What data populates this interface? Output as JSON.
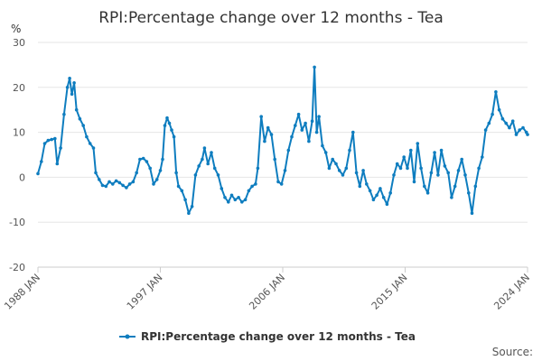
{
  "chart_data": {
    "type": "line",
    "title": "RPI:Percentage change over 12 months - Tea",
    "y_unit": "%",
    "ylim": [
      -20,
      30
    ],
    "y_ticks": [
      30,
      20,
      10,
      0,
      -10,
      -20
    ],
    "x_ticks": [
      "1988 JAN",
      "1997 JAN",
      "2006 JAN",
      "2015 JAN",
      "2024 JAN"
    ],
    "x_range": [
      "1988-01",
      "2024-01"
    ],
    "grid": true,
    "legend": "bottom-center",
    "series": [
      {
        "name": "RPI:Percentage change over 12 months - Tea",
        "color": "#0e7dbf",
        "points": [
          [
            "1988-01",
            0.8
          ],
          [
            "1988-04",
            3.5
          ],
          [
            "1988-07",
            7.5
          ],
          [
            "1988-10",
            8.2
          ],
          [
            "1989-01",
            8.4
          ],
          [
            "1989-04",
            8.6
          ],
          [
            "1989-06",
            3.0
          ],
          [
            "1989-09",
            6.5
          ],
          [
            "1989-12",
            14.0
          ],
          [
            "1990-03",
            20.0
          ],
          [
            "1990-05",
            22.0
          ],
          [
            "1990-07",
            18.5
          ],
          [
            "1990-09",
            21.0
          ],
          [
            "1990-11",
            15.0
          ],
          [
            "1991-02",
            13.0
          ],
          [
            "1991-05",
            11.5
          ],
          [
            "1991-08",
            9.0
          ],
          [
            "1991-11",
            7.5
          ],
          [
            "1992-02",
            6.5
          ],
          [
            "1992-04",
            1.0
          ],
          [
            "1992-07",
            -0.5
          ],
          [
            "1992-10",
            -1.8
          ],
          [
            "1993-01",
            -2.0
          ],
          [
            "1993-04",
            -1.0
          ],
          [
            "1993-07",
            -1.5
          ],
          [
            "1993-10",
            -0.8
          ],
          [
            "1994-01",
            -1.2
          ],
          [
            "1994-04",
            -1.8
          ],
          [
            "1994-07",
            -2.3
          ],
          [
            "1994-10",
            -1.5
          ],
          [
            "1995-01",
            -1.0
          ],
          [
            "1995-04",
            1.0
          ],
          [
            "1995-07",
            4.0
          ],
          [
            "1995-10",
            4.2
          ],
          [
            "1996-01",
            3.5
          ],
          [
            "1996-04",
            2.0
          ],
          [
            "1996-07",
            -1.5
          ],
          [
            "1996-10",
            -0.5
          ],
          [
            "1997-01",
            1.5
          ],
          [
            "1997-03",
            4.0
          ],
          [
            "1997-05",
            11.5
          ],
          [
            "1997-07",
            13.2
          ],
          [
            "1997-09",
            12.0
          ],
          [
            "1997-11",
            10.5
          ],
          [
            "1998-01",
            9.0
          ],
          [
            "1998-03",
            1.0
          ],
          [
            "1998-05",
            -2.0
          ],
          [
            "1998-08",
            -3.0
          ],
          [
            "1998-11",
            -5.0
          ],
          [
            "1999-02",
            -8.0
          ],
          [
            "1999-05",
            -6.5
          ],
          [
            "1999-08",
            0.5
          ],
          [
            "1999-11",
            2.5
          ],
          [
            "2000-02",
            4.0
          ],
          [
            "2000-04",
            6.5
          ],
          [
            "2000-07",
            3.0
          ],
          [
            "2000-10",
            5.5
          ],
          [
            "2001-01",
            2.0
          ],
          [
            "2001-04",
            0.5
          ],
          [
            "2001-07",
            -2.5
          ],
          [
            "2001-10",
            -4.5
          ],
          [
            "2002-01",
            -5.5
          ],
          [
            "2002-04",
            -4.0
          ],
          [
            "2002-07",
            -5.0
          ],
          [
            "2002-10",
            -4.5
          ],
          [
            "2003-01",
            -5.5
          ],
          [
            "2003-04",
            -5.0
          ],
          [
            "2003-07",
            -3.0
          ],
          [
            "2003-10",
            -2.0
          ],
          [
            "2004-01",
            -1.5
          ],
          [
            "2004-03",
            2.0
          ],
          [
            "2004-06",
            13.5
          ],
          [
            "2004-09",
            8.0
          ],
          [
            "2004-12",
            11.0
          ],
          [
            "2005-03",
            9.5
          ],
          [
            "2005-06",
            4.0
          ],
          [
            "2005-09",
            -1.0
          ],
          [
            "2005-12",
            -1.5
          ],
          [
            "2006-03",
            1.5
          ],
          [
            "2006-06",
            6.0
          ],
          [
            "2006-09",
            9.0
          ],
          [
            "2006-12",
            11.5
          ],
          [
            "2007-03",
            14.0
          ],
          [
            "2007-06",
            10.5
          ],
          [
            "2007-09",
            12.0
          ],
          [
            "2007-12",
            8.0
          ],
          [
            "2008-03",
            12.5
          ],
          [
            "2008-05",
            24.5
          ],
          [
            "2008-07",
            10.0
          ],
          [
            "2008-09",
            13.5
          ],
          [
            "2008-12",
            7.0
          ],
          [
            "2009-03",
            5.5
          ],
          [
            "2009-06",
            2.0
          ],
          [
            "2009-09",
            4.0
          ],
          [
            "2009-12",
            3.0
          ],
          [
            "2010-03",
            1.5
          ],
          [
            "2010-06",
            0.5
          ],
          [
            "2010-09",
            2.0
          ],
          [
            "2010-12",
            6.0
          ],
          [
            "2011-03",
            10.0
          ],
          [
            "2011-06",
            1.0
          ],
          [
            "2011-09",
            -2.0
          ],
          [
            "2011-12",
            1.5
          ],
          [
            "2012-03",
            -1.5
          ],
          [
            "2012-06",
            -3.0
          ],
          [
            "2012-09",
            -5.0
          ],
          [
            "2012-12",
            -4.0
          ],
          [
            "2013-03",
            -2.5
          ],
          [
            "2013-06",
            -4.5
          ],
          [
            "2013-09",
            -6.0
          ],
          [
            "2013-12",
            -3.5
          ],
          [
            "2014-03",
            0.5
          ],
          [
            "2014-06",
            3.0
          ],
          [
            "2014-09",
            2.0
          ],
          [
            "2014-12",
            4.5
          ],
          [
            "2015-03",
            2.0
          ],
          [
            "2015-06",
            6.0
          ],
          [
            "2015-09",
            -1.0
          ],
          [
            "2015-12",
            7.5
          ],
          [
            "2016-03",
            2.0
          ],
          [
            "2016-06",
            -2.0
          ],
          [
            "2016-09",
            -3.5
          ],
          [
            "2016-12",
            1.0
          ],
          [
            "2017-03",
            5.5
          ],
          [
            "2017-06",
            0.5
          ],
          [
            "2017-09",
            6.0
          ],
          [
            "2017-12",
            2.5
          ],
          [
            "2018-03",
            1.0
          ],
          [
            "2018-06",
            -4.5
          ],
          [
            "2018-09",
            -2.0
          ],
          [
            "2018-12",
            1.5
          ],
          [
            "2019-03",
            4.0
          ],
          [
            "2019-06",
            0.5
          ],
          [
            "2019-09",
            -3.5
          ],
          [
            "2019-12",
            -8.0
          ],
          [
            "2020-03",
            -2.0
          ],
          [
            "2020-06",
            2.0
          ],
          [
            "2020-09",
            4.5
          ],
          [
            "2020-12",
            10.5
          ],
          [
            "2021-03",
            12.0
          ],
          [
            "2021-06",
            14.0
          ],
          [
            "2021-09",
            19.0
          ],
          [
            "2021-12",
            15.0
          ],
          [
            "2022-03",
            13.0
          ],
          [
            "2022-06",
            12.0
          ],
          [
            "2022-09",
            11.0
          ],
          [
            "2022-12",
            12.5
          ],
          [
            "2023-03",
            9.5
          ],
          [
            "2023-06",
            10.5
          ],
          [
            "2023-09",
            11.0
          ],
          [
            "2023-12",
            10.0
          ],
          [
            "2024-01",
            9.5
          ]
        ]
      }
    ]
  },
  "footer": {
    "source_label": "Source:"
  }
}
